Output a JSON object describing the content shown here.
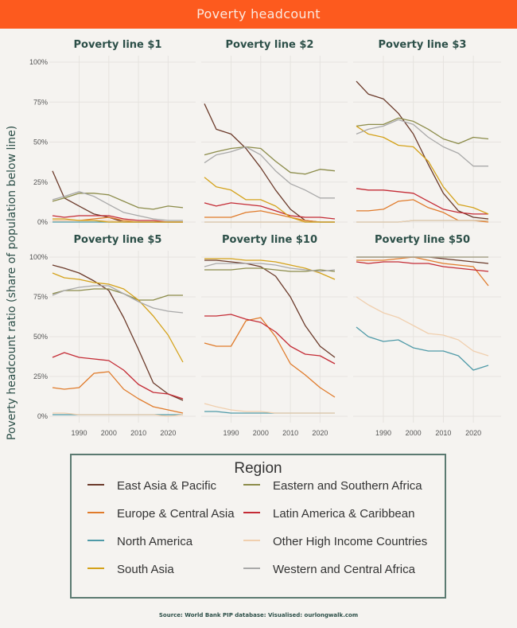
{
  "header": {
    "title": "Poverty headcount"
  },
  "source_note": "Source: World Bank PIP database: Visualised: ourlongwalk.com",
  "legend": {
    "title": "Region",
    "items": [
      {
        "label": "East Asia & Pacific",
        "color": "#6b3a2a"
      },
      {
        "label": "Eastern and Southern Africa",
        "color": "#8c8c4a"
      },
      {
        "label": "Europe & Central Asia",
        "color": "#e07b2b"
      },
      {
        "label": "Latin America & Caribbean",
        "color": "#c42b35"
      },
      {
        "label": "North America",
        "color": "#4f9aa8"
      },
      {
        "label": "Other High Income Countries",
        "color": "#f0cfae"
      },
      {
        "label": "South Asia",
        "color": "#d4a21a"
      },
      {
        "label": "Western and Central Africa",
        "color": "#a9a9a9"
      }
    ]
  },
  "chart_data": {
    "type": "line",
    "ylabel": "Poverty headcount ratio (share of population below line)",
    "xlim": [
      1981,
      2025
    ],
    "ylim": [
      0,
      100
    ],
    "xticks": [
      "1990",
      "2000",
      "2010",
      "2020"
    ],
    "xtick_values": [
      1990,
      2000,
      2010,
      2020
    ],
    "yticks": [
      "0%",
      "25%",
      "50%",
      "75%",
      "100%"
    ],
    "ytick_values": [
      0,
      25,
      50,
      75,
      100
    ],
    "x": [
      1981,
      1985,
      1990,
      1995,
      2000,
      2005,
      2010,
      2015,
      2020,
      2025
    ],
    "panels": [
      {
        "title": "Poverty line $1",
        "series": {
          "East Asia & Pacific": [
            32,
            15,
            10,
            5,
            3,
            0,
            0,
            0,
            0,
            0
          ],
          "Eastern and Southern Africa": [
            13,
            15,
            18,
            18,
            17,
            13,
            9,
            8,
            10,
            9
          ],
          "Europe & Central Asia": [
            1,
            1,
            1,
            2,
            3,
            1,
            0,
            0,
            0,
            0
          ],
          "Latin America & Caribbean": [
            4,
            3,
            4,
            4,
            4,
            2,
            1,
            1,
            0,
            0
          ],
          "North America": [
            0,
            0,
            0,
            0,
            0,
            0,
            0,
            0,
            0,
            0
          ],
          "Other High Income Countries": [
            1,
            1,
            1,
            1,
            1,
            0,
            0,
            0,
            0,
            0
          ],
          "South Asia": [
            2,
            2,
            1,
            1,
            0,
            0,
            0,
            0,
            0,
            0
          ],
          "Western and Central Africa": [
            14,
            16,
            19,
            16,
            11,
            6,
            4,
            2,
            1,
            1
          ]
        }
      },
      {
        "title": "Poverty line $2",
        "series": {
          "East Asia & Pacific": [
            74,
            58,
            55,
            46,
            34,
            20,
            8,
            1,
            0,
            0
          ],
          "Eastern and Southern Africa": [
            42,
            44,
            46,
            47,
            46,
            38,
            31,
            30,
            33,
            32
          ],
          "Europe & Central Asia": [
            3,
            3,
            3,
            6,
            7,
            5,
            3,
            1,
            0,
            0
          ],
          "Latin America & Caribbean": [
            12,
            10,
            12,
            11,
            10,
            7,
            4,
            3,
            3,
            2
          ],
          "North America": [
            0,
            0,
            0,
            0,
            0,
            0,
            0,
            0,
            0,
            0
          ],
          "Other High Income Countries": [
            0,
            0,
            0,
            0,
            0,
            0,
            0,
            0,
            0,
            0
          ],
          "South Asia": [
            28,
            22,
            20,
            14,
            14,
            10,
            3,
            0,
            0,
            0
          ],
          "Western and Central Africa": [
            37,
            42,
            44,
            47,
            42,
            32,
            24,
            20,
            15,
            15
          ]
        }
      },
      {
        "title": "Poverty line $3",
        "series": {
          "East Asia & Pacific": [
            88,
            80,
            77,
            68,
            55,
            36,
            18,
            7,
            3,
            2
          ],
          "Eastern and Southern Africa": [
            60,
            61,
            61,
            65,
            63,
            58,
            52,
            49,
            53,
            52
          ],
          "Europe & Central Asia": [
            7,
            7,
            8,
            13,
            14,
            9,
            6,
            1,
            1,
            0
          ],
          "Latin America & Caribbean": [
            21,
            20,
            20,
            19,
            18,
            13,
            8,
            6,
            5,
            5
          ],
          "North America": [
            0,
            0,
            0,
            0,
            1,
            1,
            1,
            1,
            1,
            1
          ],
          "Other High Income Countries": [
            0,
            0,
            0,
            0,
            1,
            1,
            1,
            1,
            1,
            1
          ],
          "South Asia": [
            60,
            55,
            53,
            48,
            47,
            38,
            22,
            11,
            9,
            5
          ],
          "Western and Central Africa": [
            55,
            58,
            60,
            64,
            61,
            53,
            47,
            43,
            35,
            35
          ]
        }
      },
      {
        "title": "Poverty line $5",
        "series": {
          "East Asia & Pacific": [
            95,
            93,
            90,
            85,
            79,
            62,
            42,
            21,
            14,
            10
          ],
          "Eastern and Southern Africa": [
            77,
            79,
            79,
            80,
            80,
            77,
            73,
            73,
            76,
            76
          ],
          "Europe & Central Asia": [
            18,
            17,
            18,
            27,
            28,
            17,
            11,
            6,
            4,
            2
          ],
          "Latin America & Caribbean": [
            37,
            40,
            37,
            36,
            35,
            29,
            20,
            15,
            14,
            11
          ],
          "North America": [
            1,
            1,
            1,
            1,
            1,
            1,
            1,
            1,
            1,
            1
          ],
          "Other High Income Countries": [
            2,
            2,
            1,
            1,
            1,
            1,
            1,
            1,
            0,
            1
          ],
          "South Asia": [
            90,
            87,
            86,
            84,
            83,
            80,
            73,
            63,
            51,
            34
          ],
          "Western and Central Africa": [
            76,
            79,
            81,
            82,
            82,
            77,
            72,
            68,
            66,
            65
          ]
        }
      },
      {
        "title": "Poverty line $10",
        "series": {
          "East Asia & Pacific": [
            98,
            98,
            97,
            96,
            94,
            88,
            75,
            57,
            44,
            37
          ],
          "Eastern and Southern Africa": [
            92,
            92,
            92,
            93,
            93,
            92,
            91,
            91,
            92,
            91
          ],
          "Europe & Central Asia": [
            46,
            44,
            44,
            60,
            62,
            50,
            33,
            26,
            18,
            12
          ],
          "Latin America & Caribbean": [
            63,
            63,
            64,
            61,
            59,
            53,
            44,
            39,
            38,
            33
          ],
          "North America": [
            3,
            3,
            2,
            2,
            2,
            2,
            2,
            2,
            2,
            2
          ],
          "Other High Income Countries": [
            8,
            6,
            4,
            3,
            3,
            2,
            2,
            2,
            2,
            2
          ],
          "South Asia": [
            99,
            99,
            99,
            98,
            98,
            97,
            95,
            93,
            90,
            86
          ],
          "Western and Central Africa": [
            94,
            96,
            96,
            96,
            96,
            95,
            93,
            92,
            91,
            92
          ]
        }
      },
      {
        "title": "Poverty line $50",
        "series": {
          "East Asia & Pacific": [
            100,
            100,
            100,
            100,
            100,
            100,
            99,
            98,
            97,
            96
          ],
          "Eastern and Southern Africa": [
            100,
            100,
            100,
            100,
            100,
            100,
            100,
            100,
            100,
            100
          ],
          "Europe & Central Asia": [
            98,
            98,
            98,
            99,
            100,
            98,
            96,
            95,
            94,
            82
          ],
          "Latin America & Caribbean": [
            97,
            96,
            97,
            97,
            96,
            96,
            94,
            93,
            92,
            91
          ],
          "North America": [
            56,
            50,
            47,
            48,
            43,
            41,
            41,
            38,
            29,
            32
          ],
          "Other High Income Countries": [
            75,
            70,
            65,
            62,
            57,
            52,
            51,
            48,
            41,
            38
          ],
          "South Asia": [
            100,
            100,
            100,
            100,
            100,
            100,
            100,
            100,
            100,
            100
          ],
          "Western and Central Africa": [
            100,
            100,
            100,
            100,
            100,
            100,
            100,
            100,
            100,
            100
          ]
        }
      }
    ]
  }
}
